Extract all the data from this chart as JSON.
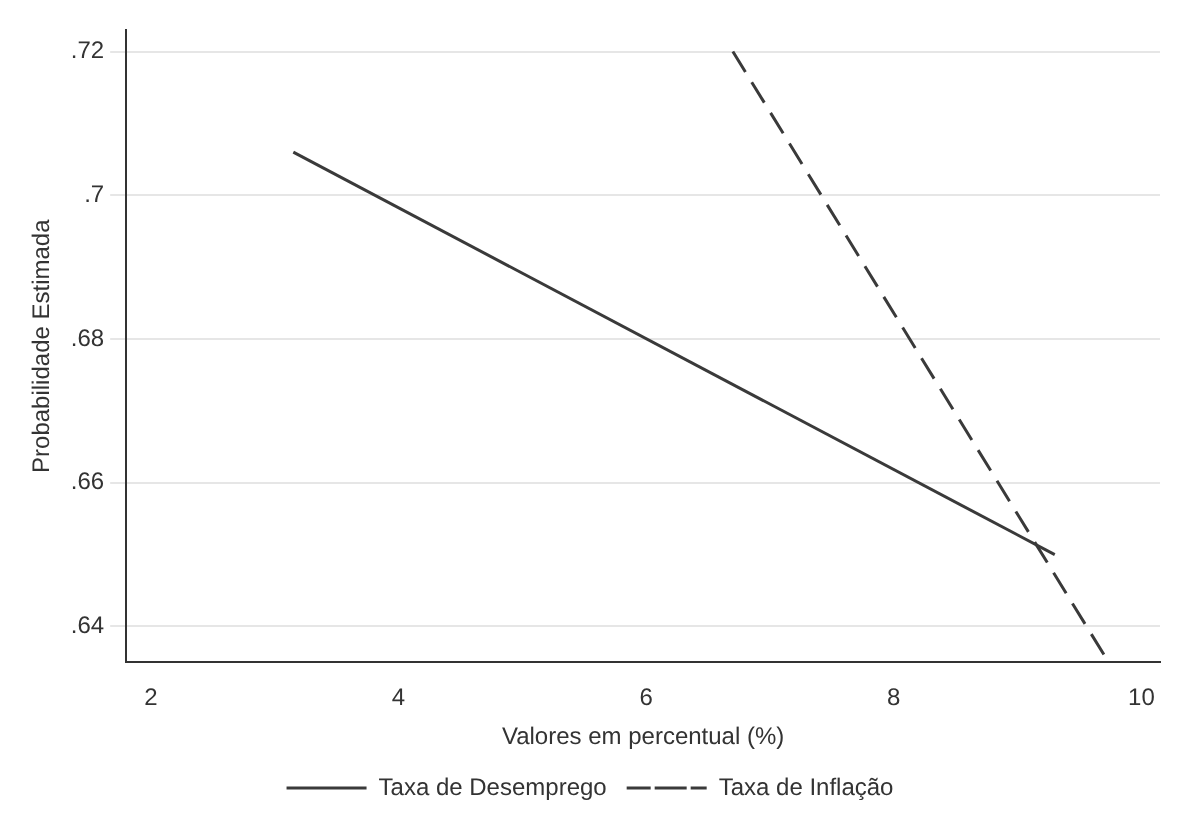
{
  "chart_data": {
    "type": "line",
    "xlabel": "Valores em percentual (%)",
    "ylabel": "Probabilidade Estimada",
    "xlim": [
      1.8,
      10.15
    ],
    "xticks": [
      2,
      4,
      6,
      8,
      10
    ],
    "ylim": [
      0.635,
      0.723
    ],
    "yticks": [
      {
        "value": 0.64,
        "label": ".64"
      },
      {
        "value": 0.66,
        "label": ".66"
      },
      {
        "value": 0.68,
        "label": ".68"
      },
      {
        "value": 0.7,
        "label": ".7"
      },
      {
        "value": 0.72,
        "label": ".72"
      }
    ],
    "grid": "y",
    "legend": "bottom",
    "marker": "none",
    "series": [
      {
        "name": "Taxa de Desemprego",
        "color": "#3a3a3a",
        "x": [
          3.15,
          9.3
        ],
        "values": [
          0.706,
          0.65
        ],
        "line_style": "solid"
      },
      {
        "name": "Taxa de Inflação",
        "color": "#3a3a3a",
        "x": [
          6.7,
          9.7
        ],
        "values": [
          0.72,
          0.636
        ],
        "line_style": "dashed"
      }
    ]
  }
}
